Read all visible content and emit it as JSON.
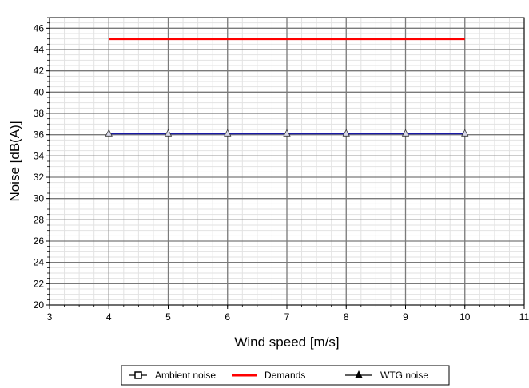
{
  "chart_data": {
    "type": "line",
    "xlabel": "Wind speed [m/s]",
    "ylabel": "Noise [dB(A)]",
    "xlim": [
      3,
      11
    ],
    "ylim": [
      20,
      47
    ],
    "x_ticks": [
      3,
      4,
      5,
      6,
      7,
      8,
      9,
      10,
      11
    ],
    "y_ticks": [
      20,
      22,
      24,
      26,
      28,
      30,
      32,
      34,
      36,
      38,
      40,
      42,
      44,
      46
    ],
    "grid": true,
    "legend_position": "bottom",
    "series": [
      {
        "name": "Ambient noise",
        "color": "#000000",
        "marker": "square",
        "x": [],
        "y": []
      },
      {
        "name": "Demands",
        "color": "#ff0000",
        "marker": "none",
        "x": [
          4,
          10
        ],
        "y": [
          45,
          45
        ]
      },
      {
        "name": "WTG noise",
        "color": "#1a1aa6",
        "marker": "triangle",
        "x": [
          4,
          5,
          6,
          7,
          8,
          9,
          10
        ],
        "y": [
          36.1,
          36.1,
          36.1,
          36.1,
          36.1,
          36.1,
          36.1
        ]
      }
    ]
  }
}
